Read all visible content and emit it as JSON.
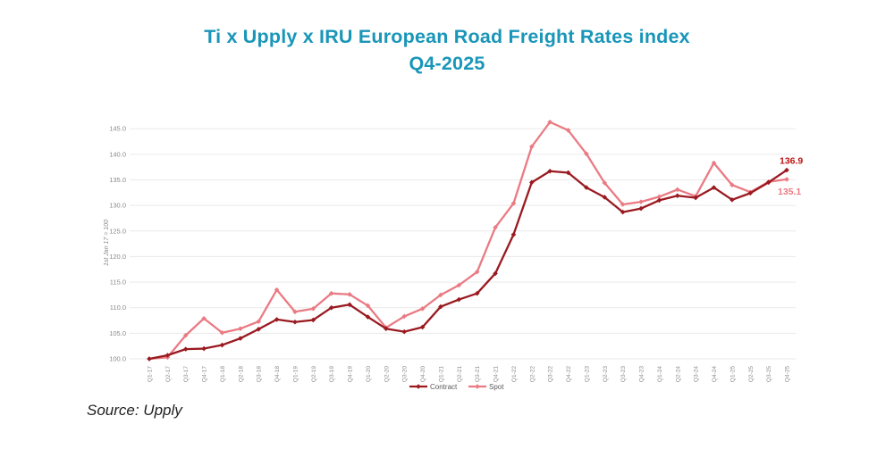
{
  "title": {
    "line1": "Ti x Upply x IRU European Road Freight Rates index",
    "line2": "Q4-2025"
  },
  "source": {
    "text": "Source: Upply"
  },
  "colors": {
    "title": "#1996b8",
    "contract_line": "#9a1a20",
    "spot_line": "#ea7a83",
    "contract_end_label": "#bf1313",
    "spot_end_label": "#ea7a83",
    "grid": "#eaeaea",
    "axis_text": "#8a8a8a",
    "legend_text": "#595959"
  },
  "chart_data": {
    "type": "line",
    "title": "Ti x Upply x IRU European Road Freight Rates index Q4-2025",
    "ylabel": "1st Jan 17 = 100",
    "ylim": [
      100,
      145
    ],
    "yticks": [
      100,
      105,
      110,
      115,
      120,
      125,
      130,
      135,
      140,
      145
    ],
    "ytick_format": "one-decimal",
    "grid": true,
    "legend_position": "bottom-center",
    "categories": [
      "Q1-17",
      "Q2-17",
      "Q3-17",
      "Q4-17",
      "Q1-18",
      "Q2-18",
      "Q3-18",
      "Q4-18",
      "Q1-19",
      "Q2-19",
      "Q3-19",
      "Q4-19",
      "Q1-20",
      "Q2-20",
      "Q3-20",
      "Q4-20",
      "Q1-21",
      "Q2-21",
      "Q3-21",
      "Q4-21",
      "Q1-22",
      "Q2-22",
      "Q3-22",
      "Q4-22",
      "Q1-23",
      "Q2-23",
      "Q3-23",
      "Q4-23",
      "Q1-24",
      "Q2-24",
      "Q3-24",
      "Q4-24",
      "Q1-25",
      "Q2-25",
      "Q3-25",
      "Q4-25"
    ],
    "series": [
      {
        "name": "Contract",
        "color_key": "contract_line",
        "values": [
          100.0,
          100.7,
          101.9,
          102.0,
          102.7,
          104.0,
          105.8,
          107.7,
          107.2,
          107.6,
          110.0,
          110.6,
          108.2,
          105.9,
          105.3,
          106.2,
          110.2,
          111.6,
          112.8,
          116.7,
          124.3,
          134.5,
          136.7,
          136.4,
          133.5,
          131.6,
          128.7,
          129.4,
          131.0,
          131.9,
          131.5,
          133.5,
          131.1,
          132.4,
          134.5,
          136.9
        ]
      },
      {
        "name": "Spot",
        "color_key": "spot_line",
        "values": [
          100.0,
          100.3,
          104.6,
          107.9,
          105.1,
          105.9,
          107.3,
          113.5,
          109.2,
          109.8,
          112.8,
          112.6,
          110.4,
          106.1,
          108.3,
          109.8,
          112.5,
          114.4,
          117.0,
          125.7,
          130.4,
          141.5,
          146.3,
          144.7,
          140.1,
          134.4,
          130.2,
          130.7,
          131.7,
          133.1,
          131.8,
          138.3,
          134.0,
          132.6,
          134.6,
          135.1
        ]
      }
    ],
    "end_labels": {
      "contract": "136.9",
      "spot": "135.1"
    },
    "legend": [
      {
        "label": "Contract"
      },
      {
        "label": "Spot"
      }
    ]
  }
}
